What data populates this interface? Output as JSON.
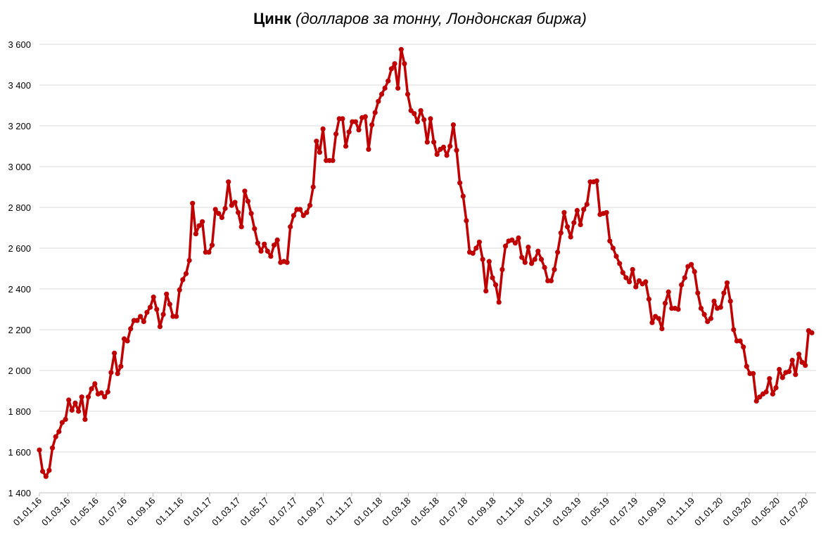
{
  "chart_data": {
    "type": "line",
    "title": "Цинк",
    "subtitle": "(долларов за тонну, Лондонская биржа)",
    "ylim": [
      1400,
      3600
    ],
    "y_ticks": [
      "1 400",
      "1 600",
      "1 800",
      "2 000",
      "2 200",
      "2 400",
      "2 600",
      "2 800",
      "3 000",
      "3 200",
      "3 400",
      "3 600"
    ],
    "x_ticks": [
      "01.01.16",
      "01.03.16",
      "01.05.16",
      "01.07.16",
      "01.09.16",
      "01.11.16",
      "01.01.17",
      "01.03.17",
      "01.05.17",
      "01.07.17",
      "01.09.17",
      "01.11.17",
      "01.01.18",
      "01.03.18",
      "01.05.18",
      "01.07.18",
      "01.09.18",
      "01.11.18",
      "01.01.19",
      "01.03.19",
      "01.05.19",
      "01.07.19",
      "01.09.19",
      "01.11.19",
      "01.01.20",
      "01.03.20",
      "01.05.20",
      "01.07.20"
    ],
    "grid": true,
    "legend": "none",
    "series": [
      {
        "color": "#c00000",
        "values": [
          1610,
          1505,
          1480,
          1510,
          1620,
          1675,
          1700,
          1745,
          1760,
          1855,
          1805,
          1840,
          1800,
          1870,
          1760,
          1870,
          1910,
          1935,
          1885,
          1890,
          1870,
          1895,
          1990,
          2085,
          1985,
          2020,
          2155,
          2145,
          2205,
          2245,
          2245,
          2265,
          2240,
          2285,
          2310,
          2360,
          2300,
          2215,
          2275,
          2375,
          2325,
          2265,
          2265,
          2395,
          2445,
          2475,
          2540,
          2820,
          2670,
          2710,
          2730,
          2580,
          2580,
          2615,
          2790,
          2770,
          2750,
          2795,
          2925,
          2810,
          2825,
          2775,
          2705,
          2880,
          2830,
          2770,
          2695,
          2625,
          2585,
          2620,
          2585,
          2560,
          2615,
          2640,
          2530,
          2535,
          2530,
          2705,
          2760,
          2790,
          2790,
          2760,
          2775,
          2810,
          2900,
          3125,
          3070,
          3185,
          3030,
          3030,
          3030,
          3160,
          3235,
          3235,
          3100,
          3170,
          3220,
          3220,
          3180,
          3240,
          3245,
          3085,
          3205,
          3265,
          3320,
          3355,
          3385,
          3420,
          3480,
          3505,
          3385,
          3575,
          3505,
          3355,
          3275,
          3260,
          3220,
          3275,
          3230,
          3120,
          3235,
          3120,
          3060,
          3085,
          3095,
          3055,
          3100,
          3205,
          3080,
          2920,
          2855,
          2735,
          2580,
          2575,
          2600,
          2630,
          2545,
          2390,
          2535,
          2455,
          2420,
          2335,
          2495,
          2610,
          2635,
          2640,
          2625,
          2650,
          2555,
          2530,
          2605,
          2525,
          2545,
          2585,
          2545,
          2505,
          2440,
          2440,
          2495,
          2580,
          2675,
          2775,
          2705,
          2655,
          2725,
          2785,
          2715,
          2790,
          2815,
          2925,
          2925,
          2930,
          2765,
          2770,
          2775,
          2635,
          2600,
          2560,
          2525,
          2480,
          2455,
          2435,
          2495,
          2410,
          2440,
          2425,
          2435,
          2350,
          2235,
          2265,
          2255,
          2205,
          2330,
          2385,
          2305,
          2305,
          2300,
          2420,
          2455,
          2510,
          2520,
          2485,
          2380,
          2305,
          2275,
          2240,
          2255,
          2340,
          2305,
          2310,
          2380,
          2430,
          2340,
          2200,
          2145,
          2145,
          2115,
          2020,
          1985,
          1985,
          1850,
          1870,
          1885,
          1895,
          1960,
          1885,
          1915,
          2005,
          1965,
          1990,
          1995,
          2050,
          1980,
          2080,
          2040,
          2025,
          2195,
          2185
        ]
      }
    ]
  }
}
